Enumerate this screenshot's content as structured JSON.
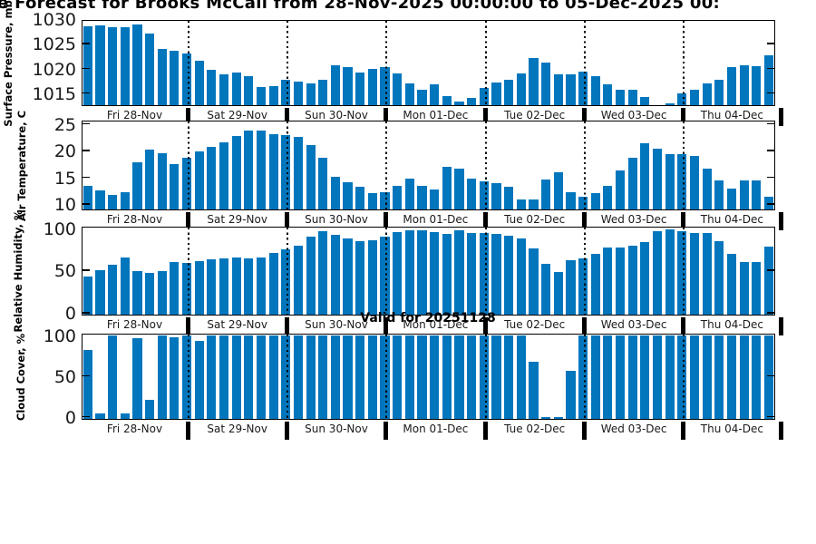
{
  "title": {
    "visible_text": "e Forecast for Brooks McCall from 28-Nov-2025 00:00:00 to 05-Dec-2025 00:"
  },
  "annotation": {
    "valid_label": "Valid for 20251128"
  },
  "colors": {
    "bar": "#0276bd",
    "axis": "#000000",
    "tick_text": "#1a1a1a"
  },
  "x_axis": {
    "hours_per_bar": 3,
    "day_labels": [
      "Fri 28-Nov",
      "Sat 29-Nov",
      "Sun 30-Nov",
      "Mon 01-Dec",
      "Tue 02-Dec",
      "Wed 03-Dec",
      "Thu 04-Dec"
    ]
  },
  "chart_data": [
    {
      "type": "bar",
      "ylabel": "Surface Pressure, mb",
      "ylim": [
        1012.6,
        1030.0
      ],
      "yticks": [
        1015,
        1020,
        1025,
        1030
      ],
      "ytick_labels": [
        "1015",
        "1020",
        "1025",
        "1030"
      ],
      "values": [
        1028.5,
        1028.7,
        1028.3,
        1028.4,
        1029.0,
        1027.0,
        1024.0,
        1023.6,
        1023.1,
        1021.6,
        1019.7,
        1018.8,
        1019.2,
        1018.5,
        1016.3,
        1016.4,
        1017.7,
        1017.3,
        1017.0,
        1017.8,
        1020.6,
        1020.3,
        1019.2,
        1019.9,
        1020.3,
        1019.0,
        1017.0,
        1015.8,
        1016.8,
        1014.4,
        1013.3,
        1014.1,
        1016.1,
        1017.1,
        1017.8,
        1019.0,
        1022.2,
        1021.2,
        1018.9,
        1018.9,
        1019.3,
        1018.4,
        1016.9,
        1015.8,
        1015.8,
        1014.3,
        1012.4,
        1012.9,
        1015.0,
        1015.7,
        1017.0,
        1017.7,
        1020.3,
        1020.6,
        1020.4,
        1022.6
      ]
    },
    {
      "type": "bar",
      "ylabel": "Air Temperature, C",
      "ylim": [
        9.0,
        25.8
      ],
      "yticks": [
        10,
        15,
        20,
        25
      ],
      "ytick_labels": [
        "10",
        "15",
        "20",
        "25"
      ],
      "values": [
        13.4,
        12.5,
        11.7,
        12.2,
        17.9,
        20.2,
        19.5,
        17.5,
        18.6,
        19.9,
        20.8,
        21.5,
        22.7,
        23.8,
        23.8,
        23.1,
        22.9,
        22.6,
        21.1,
        18.6,
        15.2,
        14.1,
        13.2,
        12.1,
        12.2,
        13.5,
        14.8,
        13.4,
        12.7,
        17.0,
        16.6,
        14.8,
        14.2,
        13.9,
        13.3,
        10.9,
        10.8,
        14.6,
        16.0,
        12.2,
        11.4,
        12.1,
        13.5,
        16.3,
        18.6,
        21.4,
        20.4,
        19.3,
        19.3,
        19.0,
        16.6,
        14.4,
        12.9,
        14.4,
        14.5,
        11.3
      ]
    },
    {
      "type": "bar",
      "ylabel": "Relative Humidity, %",
      "ylim": [
        -2,
        103
      ],
      "yticks": [
        0,
        50,
        100
      ],
      "ytick_labels": [
        "0",
        "50",
        "100"
      ],
      "values": [
        43,
        51,
        57,
        66,
        50,
        47,
        50,
        60,
        59,
        61,
        63,
        64,
        66,
        64,
        66,
        71,
        75,
        79,
        90,
        97,
        92,
        88,
        85,
        86,
        90,
        96,
        98,
        98,
        96,
        93,
        98,
        95,
        95,
        93,
        91,
        88,
        76,
        58,
        48,
        62,
        64,
        70,
        77,
        77,
        80,
        84,
        97,
        99,
        97,
        95,
        94,
        85,
        70,
        60,
        60,
        78
      ]
    },
    {
      "type": "bar",
      "ylabel": "Cloud Cover, %",
      "ylim": [
        -2.5,
        103
      ],
      "yticks": [
        0,
        50,
        100
      ],
      "ytick_labels": [
        "0",
        "50",
        "100"
      ],
      "values": [
        82,
        4,
        100,
        4,
        96,
        21,
        100,
        97,
        100,
        93,
        100,
        100,
        100,
        100,
        100,
        100,
        100,
        100,
        100,
        100,
        100,
        100,
        100,
        100,
        100,
        100,
        100,
        100,
        100,
        100,
        100,
        100,
        100,
        100,
        100,
        100,
        67,
        0,
        0,
        56,
        100,
        100,
        100,
        100,
        100,
        100,
        100,
        100,
        100,
        100,
        100,
        100,
        100,
        100,
        100,
        100
      ]
    }
  ]
}
